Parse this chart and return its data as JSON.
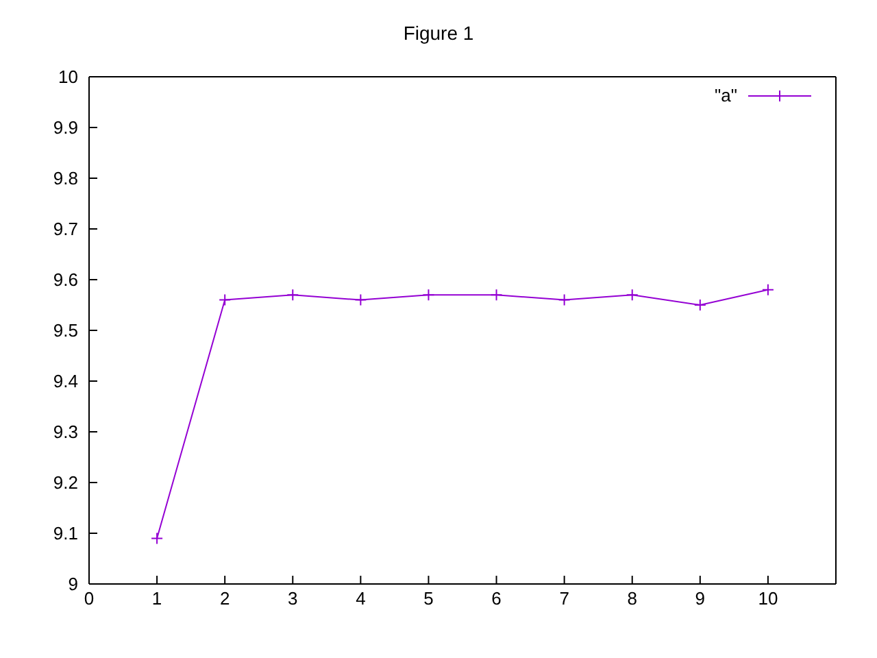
{
  "chart_data": {
    "type": "line",
    "title": "Figure 1",
    "x": [
      1,
      2,
      3,
      4,
      5,
      6,
      7,
      8,
      9,
      10
    ],
    "series": [
      {
        "name": "\"a\"",
        "color": "#9400d3",
        "values": [
          9.09,
          9.56,
          9.57,
          9.56,
          9.57,
          9.57,
          9.56,
          9.57,
          9.55,
          9.58
        ]
      }
    ],
    "xlim": [
      0,
      11
    ],
    "xticks": [
      0,
      1,
      2,
      3,
      4,
      5,
      6,
      7,
      8,
      9,
      10
    ],
    "ylim": [
      9,
      10
    ],
    "yticks": [
      9,
      9.1,
      9.2,
      9.3,
      9.4,
      9.5,
      9.6,
      9.7,
      9.8,
      9.9,
      10
    ],
    "grid": false,
    "legend": "top right",
    "marker": "cross",
    "line_style": "solid"
  }
}
